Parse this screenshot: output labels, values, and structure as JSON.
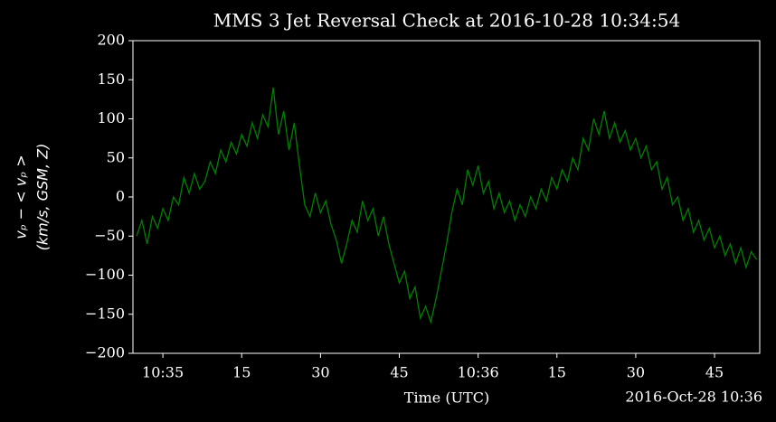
{
  "chart_data": {
    "type": "line",
    "title": "MMS 3 Jet Reversal Check at 2016-10-28 10:34:54",
    "xlabel": "Time (UTC)",
    "ylabel": [
      "vₚ − < vₚ >",
      "(km/s, GSM, Z)"
    ],
    "date_label": "2016-Oct-28 10:36",
    "xlim": [
      -5.7,
      113.6
    ],
    "xticks": [
      {
        "value": 0,
        "label": "10:35"
      },
      15,
      30,
      45,
      {
        "value": 60,
        "label": "10:36"
      },
      {
        "value": 75,
        "label": "15"
      },
      {
        "value": 90,
        "label": "30"
      },
      {
        "value": 105,
        "label": "45"
      }
    ],
    "ylim": [
      -200,
      200
    ],
    "yticks": [
      {
        "value": -200,
        "label": "−200"
      },
      {
        "value": -150,
        "label": "−150"
      },
      {
        "value": -100,
        "label": "−100"
      },
      {
        "value": -50,
        "label": "−50"
      },
      0,
      50,
      100,
      150,
      200
    ],
    "grid": false,
    "x": [
      -5,
      -4,
      -3,
      -2,
      -1,
      0,
      1,
      2,
      3,
      4,
      5,
      6,
      7,
      8,
      9,
      10,
      11,
      12,
      13,
      14,
      15,
      16,
      17,
      18,
      19,
      20,
      21,
      22,
      23,
      24,
      25,
      26,
      27,
      28,
      29,
      30,
      31,
      32,
      33,
      34,
      35,
      36,
      37,
      38,
      39,
      40,
      41,
      42,
      43,
      44,
      45,
      46,
      47,
      48,
      49,
      50,
      51,
      52,
      53,
      54,
      55,
      56,
      57,
      58,
      59,
      60,
      61,
      62,
      63,
      64,
      65,
      66,
      67,
      68,
      69,
      70,
      71,
      72,
      73,
      74,
      75,
      76,
      77,
      78,
      79,
      80,
      81,
      82,
      83,
      84,
      85,
      86,
      87,
      88,
      89,
      90,
      91,
      92,
      93,
      94,
      95,
      96,
      97,
      98,
      99,
      100,
      101,
      102,
      103,
      104,
      105,
      106,
      107,
      108,
      109,
      110,
      111,
      112,
      113
    ],
    "series": [
      {
        "name": "vp",
        "color": "#008000",
        "values": [
          -50,
          -30,
          -60,
          -25,
          -40,
          -15,
          -30,
          0,
          -10,
          25,
          5,
          30,
          10,
          20,
          45,
          30,
          60,
          45,
          70,
          55,
          80,
          65,
          95,
          75,
          105,
          90,
          140,
          80,
          110,
          60,
          95,
          40,
          -10,
          -25,
          5,
          -20,
          -5,
          -35,
          -55,
          -85,
          -60,
          -30,
          -45,
          -5,
          -30,
          -15,
          -50,
          -25,
          -60,
          -85,
          -110,
          -95,
          -130,
          -115,
          -155,
          -140,
          -160,
          -130,
          -95,
          -60,
          -20,
          10,
          -10,
          35,
          15,
          40,
          5,
          20,
          -15,
          5,
          -20,
          -5,
          -30,
          -10,
          -25,
          0,
          -15,
          10,
          -5,
          25,
          10,
          35,
          20,
          50,
          35,
          75,
          60,
          100,
          80,
          110,
          75,
          95,
          70,
          85,
          60,
          75,
          50,
          65,
          35,
          45,
          10,
          25,
          -10,
          0,
          -30,
          -15,
          -45,
          -30,
          -55,
          -40,
          -65,
          -50,
          -75,
          -60,
          -85,
          -65,
          -90,
          -70,
          -80
        ]
      }
    ]
  }
}
